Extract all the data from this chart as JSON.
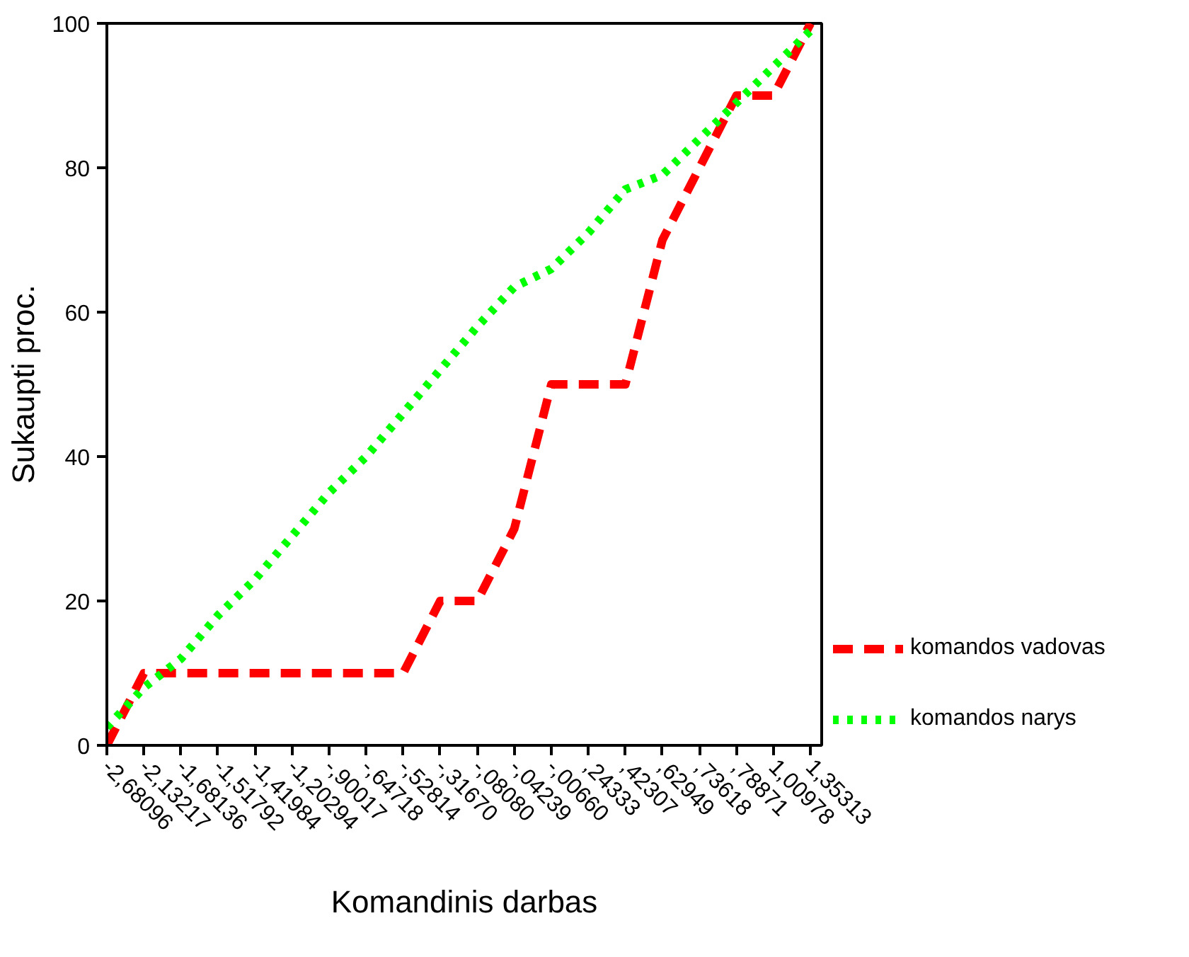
{
  "chart_data": {
    "type": "line",
    "xlabel": "Komandinis darbas",
    "ylabel": "Sukaupti proc.",
    "categories": [
      "-2,68096",
      "-2,13217",
      "-1,68136",
      "-1,51792",
      "-1,41984",
      "-1,20294",
      "-,90017",
      "-,64718",
      "-,52814",
      "-,31670",
      "-,08080",
      "-,04239",
      "-,00660",
      ",24333",
      ",42307",
      ",62949",
      ",73618",
      ",78871",
      "1,00978",
      "1,35313"
    ],
    "ylim": [
      0,
      100
    ],
    "yticks": [
      0,
      20,
      40,
      60,
      80,
      100
    ],
    "grid": false,
    "legend": "right",
    "marker": "none",
    "series": [
      {
        "name": "komandos vadovas",
        "color": "#ff0000",
        "line_style": "dashed",
        "values": [
          0,
          10,
          10,
          10,
          10,
          10,
          10,
          10,
          10,
          20,
          20,
          30,
          50,
          50,
          50,
          70,
          80,
          90,
          90,
          100
        ]
      },
      {
        "name": "komandos narys",
        "color": "#00ff00",
        "line_style": "dotted",
        "values": [
          2.5,
          8,
          12,
          18,
          23,
          29,
          35,
          40,
          46,
          52,
          58,
          63.5,
          66,
          71,
          77,
          79,
          84,
          89,
          94,
          99
        ]
      }
    ]
  }
}
